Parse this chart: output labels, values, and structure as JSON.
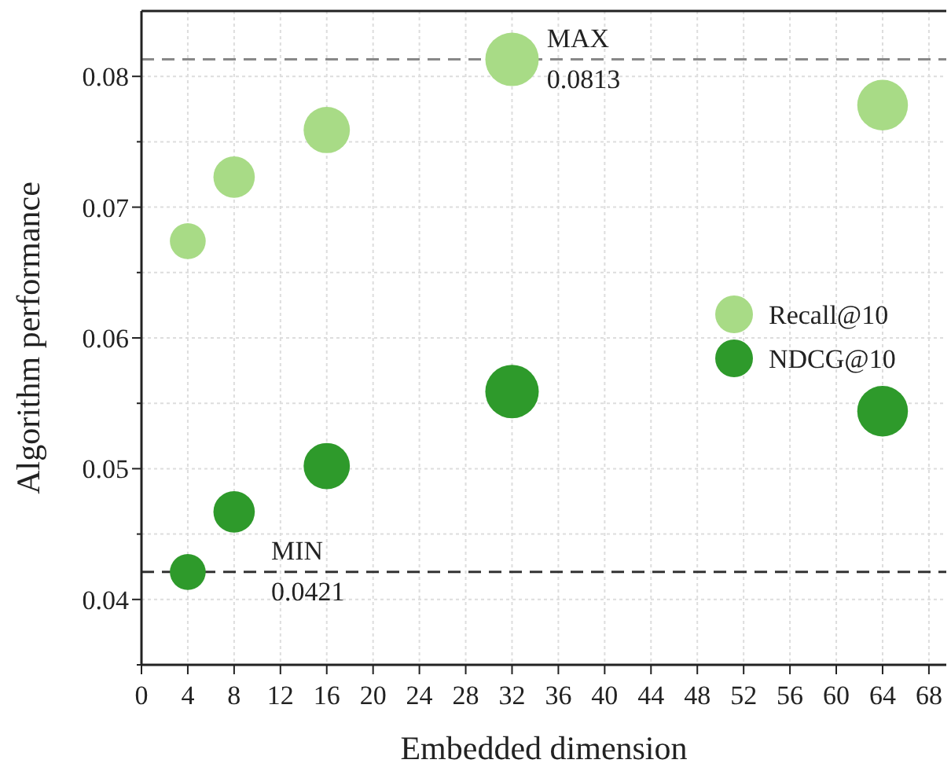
{
  "chart_data": {
    "type": "bubble",
    "xlabel": "Embedded dimension",
    "ylabel": "Algorithm performance",
    "x": [
      4,
      8,
      16,
      32,
      64
    ],
    "series": [
      {
        "name": "Recall@10",
        "color": "#a8db86",
        "values": [
          0.0674,
          0.0723,
          0.0759,
          0.0813,
          0.0778
        ],
        "sizes": [
          0.45,
          0.6,
          0.75,
          1,
          0.9
        ]
      },
      {
        "name": "NDCG@10",
        "color": "#2e9a2b",
        "values": [
          0.0421,
          0.0467,
          0.0502,
          0.0559,
          0.0544
        ],
        "sizes": [
          0.45,
          0.6,
          0.75,
          1,
          0.9
        ]
      }
    ],
    "xlim": [
      0,
      69.5
    ],
    "xticks": [
      0,
      4,
      8,
      12,
      16,
      20,
      24,
      28,
      32,
      36,
      40,
      44,
      48,
      52,
      56,
      60,
      64,
      68
    ],
    "ylim": [
      0.035,
      0.085
    ],
    "yticks": [
      {
        "value": 0.035,
        "label": null
      },
      0.04,
      {
        "value": 0.045,
        "label": null
      },
      0.05,
      {
        "value": 0.055,
        "label": null
      },
      0.06,
      {
        "value": 0.065,
        "label": null
      },
      0.07,
      {
        "value": 0.075,
        "label": null
      },
      0.08
    ],
    "ref_lines": [
      {
        "axis": "y",
        "value": 0.0813,
        "label": "MAX\n0.0813",
        "color": "#888888",
        "line_style": "dashed"
      },
      {
        "axis": "y",
        "value": 0.0421,
        "label": "MIN\n0.0421",
        "color": "#333333",
        "line_style": "dashed"
      }
    ],
    "grid": true,
    "legend": "right"
  }
}
